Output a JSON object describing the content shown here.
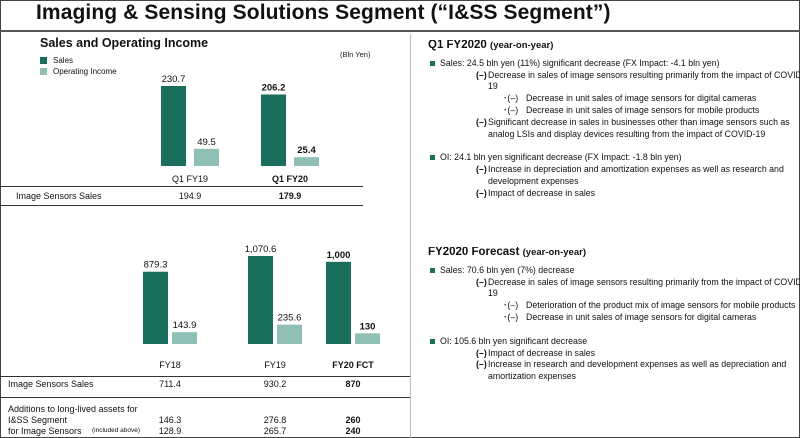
{
  "title": "Imaging & Sensing Solutions Segment (“I&SS Segment”)",
  "colors": {
    "sales": "#1a6e5c",
    "operating_income": "#8fbfb5"
  },
  "chart_data": [
    {
      "type": "bar",
      "title": "Sales and Operating Income",
      "unit": "(Bln Yen)",
      "legend": [
        "Sales",
        "Operating Income"
      ],
      "categories": [
        "Q1 FY19",
        "Q1 FY20"
      ],
      "series": [
        {
          "name": "Sales",
          "values": [
            230.7,
            206.2
          ],
          "labels": [
            "230.7",
            "206.2"
          ]
        },
        {
          "name": "Operating Income",
          "values": [
            49.5,
            25.4
          ],
          "labels": [
            "49.5",
            "25.4"
          ]
        }
      ],
      "bold_categories": [
        false,
        true
      ],
      "table": [
        {
          "label": "Image Sensors Sales",
          "values": [
            "194.9",
            "179.9"
          ]
        }
      ]
    },
    {
      "type": "bar",
      "categories": [
        "FY18",
        "FY19",
        "FY20 FCT"
      ],
      "series": [
        {
          "name": "Sales",
          "values": [
            879.3,
            1070.6,
            1000
          ],
          "labels": [
            "879.3",
            "1,070.6",
            "1,000"
          ]
        },
        {
          "name": "Operating Income",
          "values": [
            143.9,
            235.6,
            130
          ],
          "labels": [
            "143.9",
            "235.6",
            "130"
          ]
        }
      ],
      "bold_categories": [
        false,
        false,
        true
      ],
      "table": [
        {
          "label": "Image Sensors Sales",
          "values": [
            "711.4",
            "930.2",
            "870"
          ]
        },
        {
          "label": "Additions to long-lived assets for",
          "values": [
            "",
            "",
            ""
          ]
        },
        {
          "label": "I&SS Segment",
          "values": [
            "146.3",
            "276.8",
            "260"
          ]
        },
        {
          "label": "for Image Sensors",
          "note": "(included above)",
          "values": [
            "128.9",
            "265.7",
            "240"
          ]
        }
      ]
    }
  ],
  "right": {
    "q1": {
      "heading": "Q1 FY2020",
      "heading_sub": "(year-on-year)",
      "sales": "Sales: 24.5 bln yen (11%) significant decrease (FX Impact: -4.1 bln yen)",
      "sales_items": [
        {
          "level": 2,
          "marker": "(–)",
          "text": "Decrease in sales of image sensors resulting primarily from the impact of COVID-19"
        },
        {
          "level": 3,
          "marker": "･(–)",
          "text": "Decrease in unit sales of image sensors for digital cameras"
        },
        {
          "level": 3,
          "marker": "･(–)",
          "text": "Decrease in unit sales of image sensors for mobile products"
        },
        {
          "level": 2,
          "marker": "(–)",
          "text": "Significant decrease in sales in businesses other than image sensors such as analog LSIs and display devices resulting from the impact of COVID-19"
        }
      ],
      "oi": "OI: 24.1 bln yen significant decrease (FX Impact: -1.8 bln yen)",
      "oi_items": [
        {
          "level": 2,
          "marker": "(–)",
          "text": "Increase in depreciation and amortization expenses as well as research and development expenses"
        },
        {
          "level": 2,
          "marker": "(–)",
          "text": "Impact of decrease in sales"
        }
      ]
    },
    "fy": {
      "heading": "FY2020 Forecast",
      "heading_sub": "(year-on-year)",
      "sales": "Sales: 70.6 bln yen (7%) decrease",
      "sales_items": [
        {
          "level": 2,
          "marker": "(–)",
          "text": "Decrease in sales of image sensors resulting primarily from the impact of COVID-19"
        },
        {
          "level": 3,
          "marker": "･(–)",
          "text": "Deterioration of the product mix of image sensors for mobile products"
        },
        {
          "level": 3,
          "marker": "･(–)",
          "text": "Decrease in unit sales of image sensors for digital cameras"
        }
      ],
      "oi": "OI: 105.6 bln yen significant decrease",
      "oi_items": [
        {
          "level": 2,
          "marker": "(–)",
          "text": "Impact of decrease in sales"
        },
        {
          "level": 2,
          "marker": "(–)",
          "text": "Increase in research and development expenses as well as depreciation and amortization expenses"
        }
      ]
    }
  }
}
